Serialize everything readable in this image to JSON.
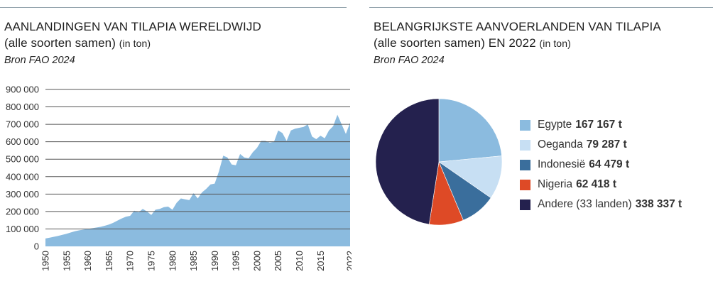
{
  "left": {
    "title_line1": "AANLANDINGEN VAN TILAPIA WERELDWIJD",
    "title_line2": "(alle soorten samen)",
    "title_unit": "(in ton)",
    "source": "Bron FAO 2024"
  },
  "right": {
    "title_line1": "BELANGRIJKSTE AANVOERLANDEN VAN TILAPIA",
    "title_line2": "(alle soorten samen) EN 2022",
    "title_unit": "(in ton)",
    "source": "Bron FAO 2024"
  },
  "colors": {
    "area": "#8bbbdf",
    "gridline": "#555555",
    "topline": "#8fa0aa"
  },
  "chart_data": [
    {
      "type": "area",
      "ylim": [
        0,
        900000
      ],
      "y_ticks": [
        0,
        100000,
        200000,
        300000,
        400000,
        500000,
        600000,
        700000,
        800000,
        900000
      ],
      "y_tick_labels": [
        "0",
        "100 000",
        "200 000",
        "300 000",
        "400 000",
        "500 000",
        "600 000",
        "700 000",
        "800 000",
        "900 000"
      ],
      "x_ticks": [
        1950,
        1955,
        1960,
        1965,
        1970,
        1975,
        1980,
        1985,
        1990,
        1995,
        2000,
        2005,
        2010,
        2015,
        2022
      ],
      "x_tick_labels": [
        "1950",
        "1955",
        "1960",
        "1965",
        "1970",
        "1975",
        "1980",
        "1985",
        "1990",
        "1995",
        "2000",
        "2005",
        "2010",
        "2015",
        "2022"
      ],
      "grid": true,
      "x": [
        1950,
        1951,
        1952,
        1953,
        1954,
        1955,
        1956,
        1957,
        1958,
        1959,
        1960,
        1961,
        1962,
        1963,
        1964,
        1965,
        1966,
        1967,
        1968,
        1969,
        1970,
        1971,
        1972,
        1973,
        1974,
        1975,
        1976,
        1977,
        1978,
        1979,
        1980,
        1981,
        1982,
        1983,
        1984,
        1985,
        1986,
        1987,
        1988,
        1989,
        1990,
        1991,
        1992,
        1993,
        1994,
        1995,
        1996,
        1997,
        1998,
        1999,
        2000,
        2001,
        2002,
        2003,
        2004,
        2005,
        2006,
        2007,
        2008,
        2009,
        2010,
        2011,
        2012,
        2013,
        2014,
        2015,
        2016,
        2017,
        2018,
        2019,
        2020,
        2021,
        2022
      ],
      "y": [
        45000,
        50000,
        55000,
        60000,
        66000,
        72000,
        80000,
        87000,
        92000,
        96000,
        100000,
        104000,
        108000,
        112000,
        118000,
        125000,
        135000,
        148000,
        160000,
        170000,
        175000,
        205000,
        195000,
        215000,
        200000,
        180000,
        210000,
        215000,
        225000,
        228000,
        210000,
        250000,
        275000,
        270000,
        265000,
        305000,
        275000,
        310000,
        330000,
        355000,
        360000,
        430000,
        520000,
        510000,
        470000,
        465000,
        530000,
        510000,
        505000,
        540000,
        565000,
        605000,
        605000,
        595000,
        600000,
        665000,
        650000,
        605000,
        665000,
        675000,
        680000,
        685000,
        700000,
        630000,
        615000,
        635000,
        620000,
        665000,
        690000,
        755000,
        700000,
        645000,
        710000
      ]
    },
    {
      "type": "pie",
      "labels": [
        "Egypte",
        "Oeganda",
        "Indonesië",
        "Nigeria",
        "Andere (33 landen)"
      ],
      "values": [
        167167,
        79287,
        64479,
        62418,
        338337
      ],
      "value_labels": [
        "167 167 t",
        "79 287 t",
        "64 479 t",
        "62 418 t",
        "338 337 t"
      ],
      "colors": [
        "#8bbbdf",
        "#c7dff3",
        "#3a6e9c",
        "#de4a26",
        "#24214e"
      ],
      "legend": "right"
    }
  ]
}
